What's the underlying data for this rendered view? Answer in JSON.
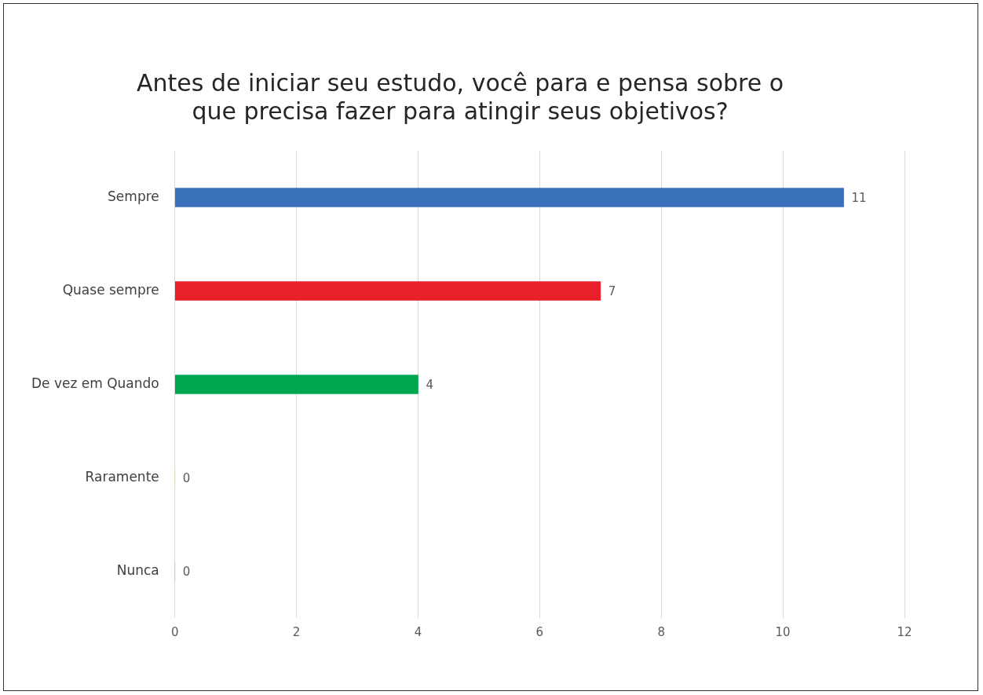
{
  "chart_data": {
    "type": "bar",
    "orientation": "horizontal",
    "title": "Antes de iniciar seu estudo, você para e pensa sobre o que precisa fazer para atingir seus objetivos?",
    "categories": [
      "Sempre",
      "Quase sempre",
      "De vez em Quando",
      "Raramente",
      "Nunca"
    ],
    "values": [
      11,
      7,
      4,
      0,
      0
    ],
    "colors": [
      "#3a6fba",
      "#e8202a",
      "#00a650",
      "#ffc000",
      "#7f7f7f"
    ],
    "xlim": [
      0,
      12
    ],
    "xticks": [
      0,
      2,
      4,
      6,
      8,
      10,
      12
    ],
    "grid": "x",
    "legend": false,
    "data_labels": true
  }
}
